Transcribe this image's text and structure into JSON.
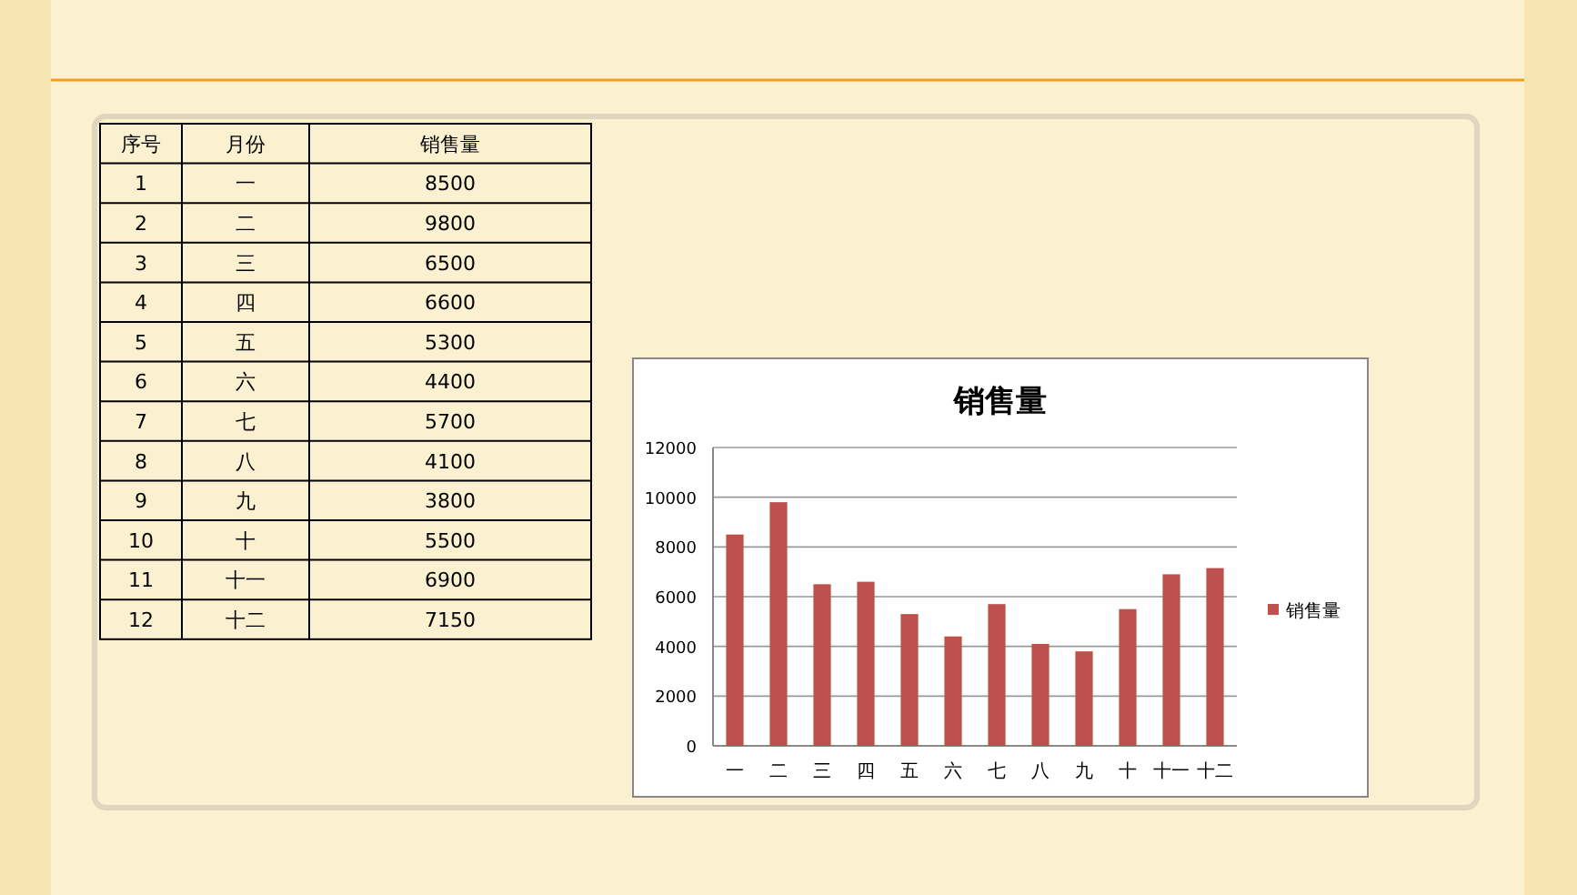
{
  "chart_data": {
    "type": "bar",
    "title": "销售量",
    "categories": [
      "一",
      "二",
      "三",
      "四",
      "五",
      "六",
      "七",
      "八",
      "九",
      "十",
      "十一",
      "十二"
    ],
    "series": [
      {
        "name": "销售量",
        "color": "#c0504d",
        "values": [
          8500,
          9800,
          6500,
          6600,
          5300,
          4400,
          5700,
          4100,
          3800,
          5500,
          6900,
          7150
        ]
      }
    ],
    "ylim": [
      0,
      12000
    ],
    "yticks": [
      0,
      2000,
      4000,
      6000,
      8000,
      10000,
      12000
    ],
    "grid": "y",
    "legend": "right",
    "annotations": [
      "序号",
      "月份",
      "1",
      "2",
      "3",
      "4",
      "5",
      "6",
      "7",
      "8",
      "9",
      "10",
      "11",
      "12",
      "8500",
      "9800",
      "6500",
      "6600",
      "5300",
      "4400",
      "5700",
      "4100",
      "3800",
      "5500",
      "6900",
      "7150"
    ]
  }
}
